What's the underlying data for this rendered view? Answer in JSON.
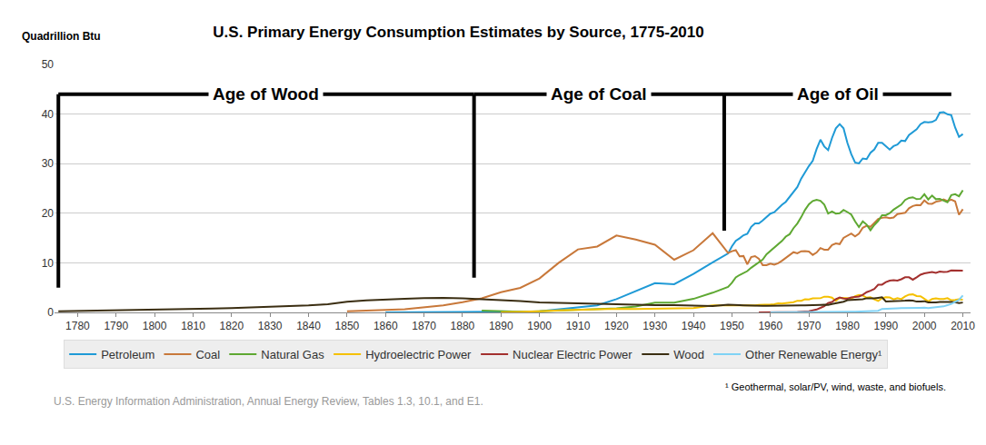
{
  "chart_data": {
    "type": "line",
    "title": "U.S. Primary Energy Consumption Estimates by Source, 1775-2010",
    "ylabel": "Quadrillion Btu",
    "footnote": "¹ Geothermal, solar/PV, wind, waste, and biofuels.",
    "source": "U.S. Energy Information Administration, Annual Energy Review, Tables 1.3, 10.1, and E1.",
    "eras": [
      {
        "label": "Age of Wood",
        "start": 1775,
        "end": 1883
      },
      {
        "label": "Age of Coal",
        "start": 1883,
        "end": 1948
      },
      {
        "label": "Age of Oil",
        "start": 1948,
        "end": 2007
      }
    ],
    "xlim": [
      1774,
      2012
    ],
    "xticks": [
      1780,
      1790,
      1800,
      1810,
      1820,
      1830,
      1840,
      1850,
      1860,
      1870,
      1880,
      1890,
      1900,
      1910,
      1920,
      1930,
      1940,
      1950,
      1960,
      1970,
      1980,
      1990,
      2000,
      2010
    ],
    "ylim": [
      0,
      50
    ],
    "yticks": [
      0,
      10,
      20,
      30,
      40,
      50
    ],
    "grid": true,
    "legend": "bottom",
    "x": [
      1775,
      1780,
      1785,
      1790,
      1795,
      1800,
      1805,
      1810,
      1815,
      1820,
      1825,
      1830,
      1835,
      1840,
      1845,
      1850,
      1855,
      1860,
      1865,
      1870,
      1875,
      1880,
      1885,
      1890,
      1895,
      1900,
      1905,
      1910,
      1915,
      1920,
      1925,
      1930,
      1935,
      1940,
      1945,
      1949,
      1950,
      1951,
      1952,
      1953,
      1954,
      1955,
      1956,
      1957,
      1958,
      1959,
      1960,
      1961,
      1962,
      1963,
      1964,
      1965,
      1966,
      1967,
      1968,
      1969,
      1970,
      1971,
      1972,
      1973,
      1974,
      1975,
      1976,
      1977,
      1978,
      1979,
      1980,
      1981,
      1982,
      1983,
      1984,
      1985,
      1986,
      1987,
      1988,
      1989,
      1990,
      1991,
      1992,
      1993,
      1994,
      1995,
      1996,
      1997,
      1998,
      1999,
      2000,
      2001,
      2002,
      2003,
      2004,
      2005,
      2006,
      2007,
      2008,
      2009,
      2010
    ],
    "series": [
      {
        "name": "Petroleum",
        "color": "#1f9ad6",
        "values": [
          null,
          null,
          null,
          null,
          null,
          null,
          null,
          null,
          null,
          null,
          null,
          null,
          null,
          null,
          null,
          null,
          null,
          0.01,
          0.02,
          0.02,
          0.04,
          0.1,
          0.08,
          0.16,
          0.17,
          0.23,
          0.61,
          1.01,
          1.42,
          2.68,
          4.28,
          5.9,
          5.68,
          7.76,
          10.11,
          11.88,
          13.32,
          14.43,
          14.96,
          15.56,
          15.84,
          17.25,
          17.94,
          17.93,
          18.53,
          19.32,
          19.92,
          20.22,
          21.05,
          21.7,
          22.3,
          23.25,
          24.4,
          25.28,
          26.98,
          28.34,
          29.52,
          30.56,
          32.95,
          34.84,
          33.45,
          32.73,
          35.17,
          37.12,
          37.97,
          37.12,
          34.2,
          31.93,
          30.23,
          30.05,
          31.05,
          30.92,
          32.2,
          32.87,
          34.22,
          34.21,
          33.55,
          32.85,
          33.53,
          33.84,
          34.67,
          34.55,
          35.76,
          36.27,
          36.93,
          37.96,
          38.4,
          38.33,
          38.4,
          38.81,
          40.29,
          40.39,
          39.96,
          39.77,
          37.28,
          35.4,
          35.97
        ]
      },
      {
        "name": "Coal",
        "color": "#c8783a",
        "values": [
          null,
          null,
          null,
          null,
          null,
          null,
          null,
          null,
          null,
          null,
          null,
          null,
          null,
          null,
          null,
          0.22,
          0.42,
          0.52,
          0.63,
          1.05,
          1.44,
          2.05,
          2.84,
          4.06,
          4.95,
          6.84,
          10.0,
          12.71,
          13.29,
          15.5,
          14.71,
          13.64,
          10.63,
          12.54,
          15.97,
          11.98,
          12.35,
          12.55,
          11.31,
          11.37,
          9.71,
          11.17,
          11.35,
          10.82,
          9.53,
          9.52,
          9.84,
          9.62,
          9.91,
          10.41,
          10.96,
          11.58,
          12.14,
          11.91,
          12.33,
          12.38,
          12.27,
          11.6,
          12.08,
          12.97,
          12.66,
          12.66,
          13.58,
          13.92,
          13.77,
          15.04,
          15.42,
          15.91,
          15.32,
          15.89,
          17.07,
          17.48,
          17.26,
          18.01,
          18.85,
          19.07,
          19.17,
          18.99,
          19.12,
          19.84,
          19.91,
          20.09,
          21.0,
          21.45,
          21.66,
          21.62,
          22.58,
          21.91,
          21.9,
          22.32,
          22.47,
          22.8,
          22.45,
          22.75,
          22.39,
          19.69,
          20.82
        ]
      },
      {
        "name": "Natural Gas",
        "color": "#5ea832",
        "values": [
          null,
          null,
          null,
          null,
          null,
          null,
          null,
          null,
          null,
          null,
          null,
          null,
          null,
          null,
          null,
          null,
          null,
          null,
          null,
          null,
          null,
          null,
          0.37,
          0.26,
          0.15,
          0.25,
          0.37,
          0.54,
          0.67,
          0.81,
          1.21,
          1.97,
          1.97,
          2.73,
          3.97,
          5.15,
          5.97,
          7.05,
          7.55,
          7.91,
          8.33,
          9.0,
          9.61,
          10.19,
          10.66,
          11.72,
          12.39,
          12.93,
          13.73,
          14.4,
          15.29,
          15.77,
          16.99,
          17.94,
          19.21,
          20.68,
          21.79,
          22.47,
          22.7,
          22.51,
          21.73,
          19.95,
          20.35,
          19.93,
          20.0,
          20.67,
          20.24,
          19.75,
          18.36,
          17.21,
          18.38,
          17.7,
          16.59,
          17.64,
          18.45,
          19.6,
          19.6,
          20.03,
          20.71,
          21.23,
          21.73,
          22.67,
          23.09,
          23.22,
          22.83,
          22.91,
          23.82,
          22.77,
          23.56,
          22.83,
          22.91,
          22.56,
          22.22,
          23.66,
          23.84,
          23.42,
          24.64
        ]
      },
      {
        "name": "Hydroelectric Power",
        "color": "#f5c000",
        "values": [
          null,
          null,
          null,
          null,
          null,
          null,
          null,
          null,
          null,
          null,
          null,
          null,
          null,
          null,
          null,
          null,
          null,
          null,
          null,
          null,
          null,
          null,
          null,
          0.02,
          0.09,
          0.25,
          0.39,
          0.54,
          0.7,
          0.74,
          0.7,
          0.75,
          0.83,
          0.88,
          1.44,
          1.42,
          1.42,
          1.45,
          1.5,
          1.44,
          1.36,
          1.36,
          1.43,
          1.52,
          1.59,
          1.55,
          1.61,
          1.66,
          1.82,
          1.77,
          1.89,
          2.06,
          2.06,
          2.35,
          2.35,
          2.65,
          2.63,
          2.82,
          2.86,
          2.86,
          3.18,
          3.16,
          2.98,
          2.33,
          2.94,
          2.93,
          2.9,
          2.76,
          3.27,
          3.53,
          3.39,
          2.97,
          3.07,
          2.63,
          2.33,
          2.84,
          3.05,
          3.02,
          2.62,
          2.89,
          2.68,
          3.21,
          3.59,
          3.64,
          3.3,
          3.27,
          2.81,
          2.24,
          2.69,
          2.83,
          2.69,
          2.7,
          2.87,
          2.45,
          2.51,
          2.67,
          2.54
        ]
      },
      {
        "name": "Nuclear Electric Power",
        "color": "#a3302e",
        "values": [
          null,
          null,
          null,
          null,
          null,
          null,
          null,
          null,
          null,
          null,
          null,
          null,
          null,
          null,
          null,
          null,
          null,
          null,
          null,
          null,
          null,
          null,
          null,
          null,
          null,
          null,
          null,
          null,
          null,
          null,
          null,
          null,
          null,
          null,
          null,
          null,
          null,
          null,
          null,
          null,
          null,
          null,
          null,
          0.0,
          0.0,
          0.0,
          0.01,
          0.02,
          0.03,
          0.04,
          0.04,
          0.04,
          0.06,
          0.09,
          0.14,
          0.15,
          0.24,
          0.41,
          0.58,
          0.91,
          1.27,
          1.9,
          2.11,
          2.7,
          3.02,
          2.78,
          2.74,
          3.01,
          3.13,
          3.2,
          3.55,
          4.08,
          4.38,
          4.75,
          5.59,
          5.6,
          6.1,
          6.42,
          6.48,
          6.41,
          6.69,
          7.08,
          7.09,
          6.6,
          7.07,
          7.61,
          7.86,
          8.03,
          8.14,
          7.96,
          8.22,
          8.16,
          8.21,
          8.46,
          8.43,
          8.36,
          8.43
        ]
      },
      {
        "name": "Wood",
        "color": "#3b2e12",
        "values": [
          0.25,
          0.3,
          0.35,
          0.4,
          0.46,
          0.52,
          0.6,
          0.68,
          0.78,
          0.88,
          1.0,
          1.13,
          1.27,
          1.43,
          1.66,
          2.14,
          2.42,
          2.64,
          2.77,
          2.89,
          2.94,
          2.85,
          2.68,
          2.52,
          2.31,
          2.02,
          1.93,
          1.86,
          1.75,
          1.61,
          1.47,
          1.46,
          1.48,
          1.36,
          1.26,
          1.55,
          1.56,
          1.54,
          1.48,
          1.44,
          1.39,
          1.42,
          1.41,
          1.33,
          1.32,
          1.32,
          1.32,
          1.3,
          1.3,
          1.32,
          1.34,
          1.33,
          1.37,
          1.34,
          1.42,
          1.44,
          1.43,
          1.43,
          1.5,
          1.53,
          1.54,
          1.5,
          1.71,
          1.84,
          2.04,
          2.15,
          2.48,
          2.5,
          2.51,
          2.63,
          2.66,
          2.86,
          2.84,
          2.82,
          2.94,
          3.05,
          2.22,
          2.21,
          2.28,
          2.22,
          2.32,
          2.37,
          2.44,
          2.37,
          2.18,
          2.22,
          2.26,
          2.01,
          1.98,
          2.0,
          2.12,
          2.14,
          2.11,
          2.09,
          2.04,
          1.88,
          1.99
        ]
      },
      {
        "name": "Other Renewable Energy¹",
        "color": "#7fd2f5",
        "values": [
          null,
          null,
          null,
          null,
          null,
          null,
          null,
          null,
          null,
          null,
          null,
          null,
          null,
          null,
          null,
          null,
          null,
          null,
          null,
          null,
          null,
          null,
          null,
          null,
          null,
          null,
          null,
          null,
          null,
          null,
          null,
          null,
          null,
          null,
          null,
          null,
          null,
          null,
          null,
          null,
          null,
          null,
          null,
          null,
          null,
          null,
          0.0,
          0.0,
          0.0,
          0.0,
          0.0,
          0.0,
          0.01,
          0.01,
          0.01,
          0.01,
          0.01,
          0.01,
          0.03,
          0.05,
          0.05,
          0.07,
          0.08,
          0.08,
          0.07,
          0.09,
          0.11,
          0.13,
          0.14,
          0.17,
          0.22,
          0.25,
          0.27,
          0.3,
          0.32,
          0.7,
          0.76,
          0.79,
          0.83,
          0.84,
          0.86,
          0.85,
          0.89,
          0.9,
          0.9,
          0.92,
          0.94,
          0.87,
          0.96,
          1.02,
          1.1,
          1.22,
          1.45,
          1.71,
          2.13,
          2.53,
          3.4
        ]
      }
    ]
  }
}
